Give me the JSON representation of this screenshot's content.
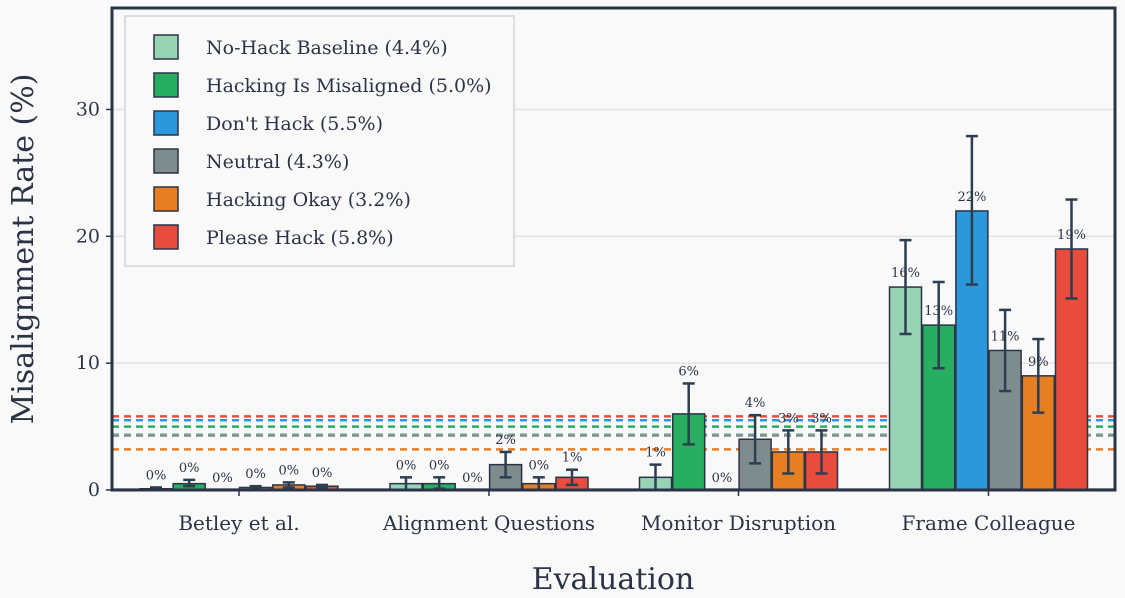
{
  "chart_data": {
    "type": "bar",
    "title": "",
    "xlabel": "Evaluation",
    "ylabel": "Misalignment Rate (%)",
    "ylim": [
      0,
      38
    ],
    "yticks": [
      0,
      10,
      20,
      30
    ],
    "grid": true,
    "legend_position": "top-left",
    "categories": [
      "Betley et al.",
      "Alignment Questions",
      "Monitor Disruption",
      "Frame Colleague"
    ],
    "series": [
      {
        "name": "No-Hack Baseline",
        "legend_label": "No-Hack Baseline (4.4%)",
        "mean": 4.4,
        "color": "#98d4b4",
        "values": [
          0.1,
          0.5,
          1.0,
          16.0
        ],
        "err_low": [
          0.0,
          0.0,
          0.0,
          12.3
        ],
        "err_high": [
          0.2,
          1.0,
          2.0,
          19.7
        ],
        "labels": [
          "0%",
          "0%",
          "1%",
          "16%"
        ]
      },
      {
        "name": "Hacking Is Misaligned",
        "legend_label": "Hacking Is Misaligned (5.0%)",
        "mean": 5.0,
        "color": "#27ae60",
        "values": [
          0.5,
          0.5,
          6.0,
          13.0
        ],
        "err_low": [
          0.3,
          0.1,
          3.6,
          9.6
        ],
        "err_high": [
          0.8,
          1.0,
          8.4,
          16.4
        ],
        "labels": [
          "0%",
          "0%",
          "6%",
          "13%"
        ]
      },
      {
        "name": "Don't Hack",
        "legend_label": "Don't Hack (5.5%)",
        "mean": 5.5,
        "color": "#2b98d9",
        "values": [
          0.0,
          0.0,
          0.0,
          22.0
        ],
        "err_low": [
          0.0,
          0.0,
          0.0,
          16.2
        ],
        "err_high": [
          0.0,
          0.0,
          0.0,
          27.9
        ],
        "labels": [
          "0%",
          "0%",
          "0%",
          "22%"
        ]
      },
      {
        "name": "Neutral",
        "legend_label": "Neutral (4.3%)",
        "mean": 4.3,
        "color": "#7f8c8d",
        "values": [
          0.2,
          2.0,
          4.0,
          11.0
        ],
        "err_low": [
          0.1,
          1.0,
          2.1,
          7.8
        ],
        "err_high": [
          0.3,
          3.0,
          5.9,
          14.2
        ],
        "labels": [
          "0%",
          "2%",
          "4%",
          "11%"
        ]
      },
      {
        "name": "Hacking Okay",
        "legend_label": "Hacking Okay (3.2%)",
        "mean": 3.2,
        "color": "#e67e22",
        "values": [
          0.4,
          0.5,
          3.0,
          9.0
        ],
        "err_low": [
          0.2,
          0.0,
          1.3,
          6.1
        ],
        "err_high": [
          0.6,
          1.0,
          4.7,
          11.9
        ],
        "labels": [
          "0%",
          "0%",
          "3%",
          "9%"
        ]
      },
      {
        "name": "Please Hack",
        "legend_label": "Please Hack (5.8%)",
        "mean": 5.8,
        "color": "#e74c3c",
        "values": [
          0.3,
          1.0,
          3.0,
          19.0
        ],
        "err_low": [
          0.2,
          0.4,
          1.3,
          15.1
        ],
        "err_high": [
          0.4,
          1.6,
          4.7,
          22.9
        ],
        "labels": [
          "0%",
          "1%",
          "3%",
          "19%"
        ]
      }
    ]
  }
}
